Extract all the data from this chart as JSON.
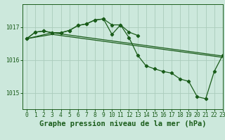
{
  "background_color": "#cce8dc",
  "grid_color": "#aaccbb",
  "line_color": "#1a5c1a",
  "title": "Graphe pression niveau de la mer (hPa)",
  "xlim": [
    -0.5,
    23
  ],
  "ylim": [
    1014.5,
    1017.7
  ],
  "yticks": [
    1015,
    1016,
    1017
  ],
  "xticks": [
    0,
    1,
    2,
    3,
    4,
    5,
    6,
    7,
    8,
    9,
    10,
    11,
    12,
    13,
    14,
    15,
    16,
    17,
    18,
    19,
    20,
    21,
    22,
    23
  ],
  "series1_x": [
    0,
    1,
    2,
    3,
    4,
    5,
    6,
    7,
    8,
    9,
    10,
    11,
    12,
    13
  ],
  "series1_y": [
    1016.65,
    1016.85,
    1016.88,
    1016.83,
    1016.83,
    1016.9,
    1017.05,
    1017.1,
    1017.22,
    1017.25,
    1017.07,
    1017.07,
    1016.85,
    1016.75
  ],
  "series2_x": [
    0,
    1,
    2,
    3,
    4,
    5,
    6,
    7,
    8,
    9,
    10,
    11,
    12,
    13,
    14,
    15,
    16,
    17,
    18,
    19,
    20,
    21,
    22,
    23
  ],
  "series2_y": [
    1016.65,
    1016.85,
    1016.88,
    1016.83,
    1016.83,
    1016.9,
    1017.05,
    1017.1,
    1017.22,
    1017.25,
    1016.78,
    1017.07,
    1016.68,
    1016.15,
    1015.82,
    1015.73,
    1015.65,
    1015.6,
    1015.42,
    1015.35,
    1014.88,
    1014.82,
    1015.65,
    1016.15
  ],
  "series3_x": [
    0,
    3,
    23
  ],
  "series3_y": [
    1016.65,
    1016.83,
    1016.12
  ],
  "series4_x": [
    0,
    3,
    23
  ],
  "series4_y": [
    1016.65,
    1016.78,
    1016.08
  ],
  "marker": "D",
  "markersize": 2.2,
  "linewidth": 0.9,
  "title_fontsize": 7.5,
  "tick_fontsize": 5.8
}
